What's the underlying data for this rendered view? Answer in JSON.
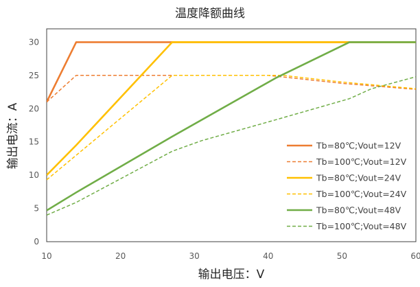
{
  "chart_data": {
    "type": "line",
    "title": "温度降额曲线",
    "xlabel": "输出电压：V",
    "ylabel": "输出电流：A",
    "xlim": [
      10,
      60
    ],
    "ylim": [
      0,
      32
    ],
    "x_ticks": [
      10,
      20,
      30,
      40,
      50,
      60
    ],
    "y_ticks": [
      0,
      5,
      10,
      15,
      20,
      25,
      30
    ],
    "grid": false,
    "legend_position": "right",
    "series": [
      {
        "name": "Tb=80℃;Vout=12V",
        "color": "#ED7D31",
        "style": "solid",
        "points": [
          [
            10,
            21
          ],
          [
            14,
            30
          ],
          [
            60,
            30
          ]
        ]
      },
      {
        "name": "Tb=100℃;Vout=12V",
        "color": "#ED7D31",
        "style": "dashed",
        "points": [
          [
            10,
            21
          ],
          [
            14,
            25
          ],
          [
            40,
            25
          ],
          [
            50,
            23.8
          ],
          [
            60,
            22.9
          ]
        ]
      },
      {
        "name": "Tb=80℃;Vout=24V",
        "color": "#FFC000",
        "style": "solid",
        "points": [
          [
            10,
            10
          ],
          [
            14,
            14.5
          ],
          [
            27,
            30
          ],
          [
            60,
            30
          ]
        ]
      },
      {
        "name": "Tb=100℃;Vout=24V",
        "color": "#FFC000",
        "style": "dashed",
        "points": [
          [
            10,
            9.3
          ],
          [
            27,
            25
          ],
          [
            42,
            25
          ],
          [
            50,
            24
          ],
          [
            60,
            23
          ]
        ]
      },
      {
        "name": "Tb=80℃;Vout=48V",
        "color": "#70AD47",
        "style": "solid",
        "points": [
          [
            10,
            4.7
          ],
          [
            14,
            7.4
          ],
          [
            27,
            15.8
          ],
          [
            41,
            24.6
          ],
          [
            51,
            30
          ],
          [
            60,
            30
          ]
        ]
      },
      {
        "name": "Tb=100℃;Vout=48V",
        "color": "#70AD47",
        "style": "dashed",
        "points": [
          [
            10,
            4
          ],
          [
            14,
            5.9
          ],
          [
            27,
            13.6
          ],
          [
            31,
            15.2
          ],
          [
            40,
            18
          ],
          [
            51,
            21.5
          ],
          [
            54,
            23
          ],
          [
            60,
            24.8
          ]
        ]
      }
    ]
  }
}
